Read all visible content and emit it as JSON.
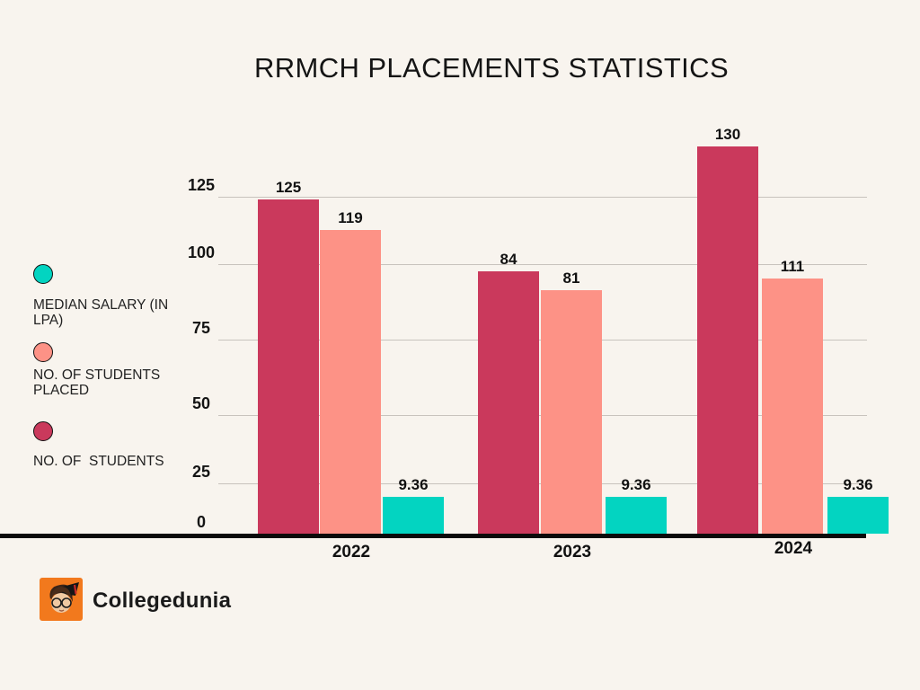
{
  "chart_data": {
    "type": "bar",
    "title": "RRMCH PLACEMENTS STATISTICS",
    "categories": [
      "2022",
      "2023",
      "2024"
    ],
    "series": [
      {
        "name": "NO. OF  STUDENTS",
        "color": "#ca395c",
        "values": [
          125,
          84,
          130
        ]
      },
      {
        "name": "NO. OF STUDENTS PLACED",
        "color": "#fd9286",
        "values": [
          119,
          81,
          111
        ]
      },
      {
        "name": "MEDIAN SALARY (IN LPA)",
        "color": "#03d4c1",
        "values": [
          9.36,
          9.36,
          9.36
        ]
      }
    ],
    "xlabel": "",
    "ylabel": "",
    "y_ticks": [
      "0",
      "25",
      "50",
      "75",
      "100",
      "125"
    ],
    "ylim": [
      0,
      130
    ],
    "grid": "horizontal",
    "legend_position": "left"
  },
  "legend": {
    "items": [
      {
        "label": "MEDIAN SALARY (IN LPA)",
        "color": "#03d4c1"
      },
      {
        "label": "NO. OF STUDENTS PLACED",
        "color": "#fd9286"
      },
      {
        "label": "NO. OF  STUDENTS",
        "color": "#ca395c"
      }
    ]
  },
  "footer": {
    "brand": "Collegedunia"
  },
  "colors": {
    "background": "#f8f4ee",
    "gridline": "#c8c3bd",
    "axis_line": "#0a0a0a",
    "text": "#141414",
    "bar_students": "#ca395c",
    "bar_placed": "#fd9286",
    "bar_salary": "#03d4c1",
    "logo_orange": "#f2791d"
  }
}
